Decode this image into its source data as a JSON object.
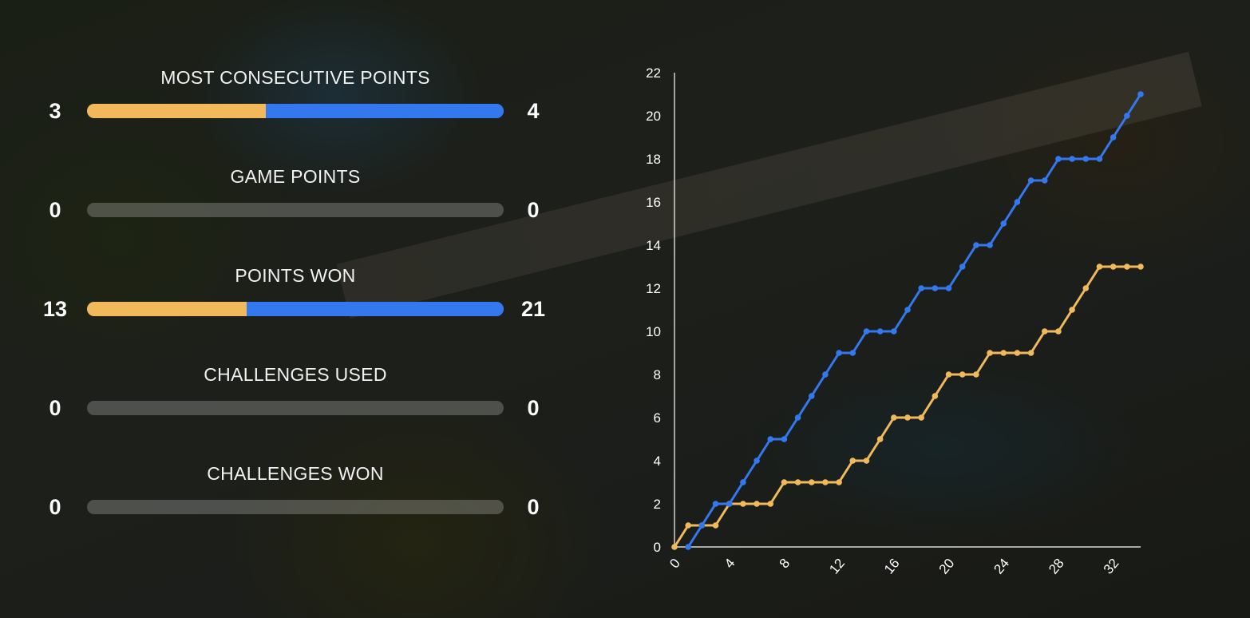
{
  "colors": {
    "player_a": "#f2b95a",
    "player_b": "#3478f0"
  },
  "stats": [
    {
      "label": "MOST CONSECUTIVE POINTS",
      "left": "3",
      "right": "4",
      "left_value": 3,
      "right_value": 4
    },
    {
      "label": "GAME POINTS",
      "left": "0",
      "right": "0",
      "left_value": 0,
      "right_value": 0
    },
    {
      "label": "POINTS WON",
      "left": "13",
      "right": "21",
      "left_value": 13,
      "right_value": 21
    },
    {
      "label": "CHALLENGES USED",
      "left": "0",
      "right": "0",
      "left_value": 0,
      "right_value": 0
    },
    {
      "label": "CHALLENGES WON",
      "left": "0",
      "right": "0",
      "left_value": 0,
      "right_value": 0
    }
  ],
  "chart_data": {
    "type": "line",
    "title": "",
    "xlabel": "",
    "ylabel": "",
    "xlim": [
      0,
      34
    ],
    "ylim": [
      0,
      22
    ],
    "x_ticks": [
      "0",
      "4",
      "8",
      "12",
      "16",
      "20",
      "24",
      "28",
      "32"
    ],
    "y_ticks": [
      "0",
      "2",
      "4",
      "6",
      "8",
      "10",
      "12",
      "14",
      "16",
      "18",
      "20",
      "22"
    ],
    "grid": false,
    "legend": "none",
    "series": [
      {
        "color": "#f2b95a",
        "x": [
          0,
          1,
          2,
          3,
          4,
          5,
          6,
          7,
          8,
          9,
          10,
          11,
          12,
          13,
          14,
          15,
          16,
          17,
          18,
          19,
          20,
          21,
          22,
          23,
          24,
          25,
          26,
          27,
          28,
          29,
          30,
          31,
          32,
          33,
          34
        ],
        "y": [
          0,
          1,
          1,
          1,
          2,
          2,
          2,
          2,
          3,
          3,
          3,
          3,
          3,
          4,
          4,
          5,
          6,
          6,
          6,
          7,
          8,
          8,
          8,
          9,
          9,
          9,
          9,
          10,
          10,
          11,
          12,
          13,
          13,
          13,
          13
        ]
      },
      {
        "color": "#3478f0",
        "x": [
          1,
          2,
          3,
          4,
          5,
          6,
          7,
          8,
          9,
          10,
          11,
          12,
          13,
          14,
          15,
          16,
          17,
          18,
          19,
          20,
          21,
          22,
          23,
          24,
          25,
          26,
          27,
          28,
          29,
          30,
          31,
          32,
          33,
          34
        ],
        "y": [
          0,
          1,
          2,
          2,
          3,
          4,
          5,
          5,
          6,
          7,
          8,
          9,
          9,
          10,
          10,
          10,
          11,
          12,
          12,
          12,
          13,
          14,
          14,
          15,
          16,
          17,
          17,
          18,
          18,
          18,
          18,
          19,
          20,
          21
        ]
      }
    ]
  }
}
